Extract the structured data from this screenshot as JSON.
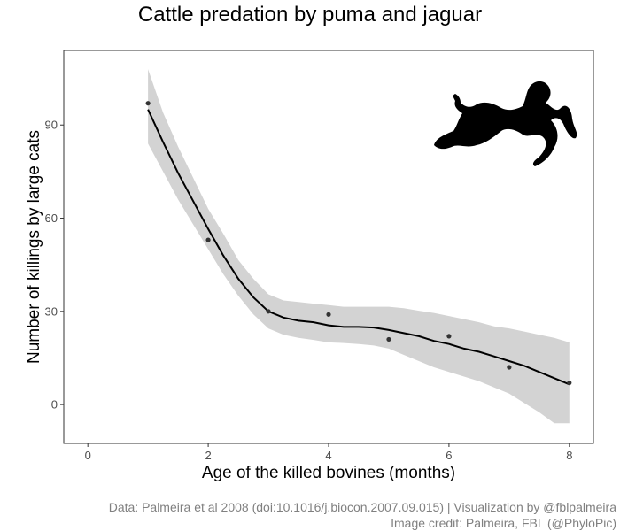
{
  "chart_data": {
    "type": "scatter",
    "title": "Cattle predation by puma and jaguar",
    "xlabel": "Age of the killed bovines (months)",
    "ylabel": "Number of killings by large cats",
    "xlim": [
      -0.4,
      8.4
    ],
    "ylim": [
      -12.5,
      114
    ],
    "x_ticks": [
      0,
      2,
      4,
      6,
      8
    ],
    "y_ticks": [
      0,
      30,
      60,
      90
    ],
    "grid": false,
    "legend": "none",
    "points": [
      {
        "x": 1,
        "y": 97
      },
      {
        "x": 2,
        "y": 53
      },
      {
        "x": 3,
        "y": 30
      },
      {
        "x": 4,
        "y": 29
      },
      {
        "x": 5,
        "y": 21
      },
      {
        "x": 6,
        "y": 22
      },
      {
        "x": 7,
        "y": 12
      },
      {
        "x": 8,
        "y": 7
      }
    ],
    "smooth": {
      "x": [
        1.0,
        1.25,
        1.5,
        1.75,
        2.0,
        2.25,
        2.5,
        2.75,
        3.0,
        3.25,
        3.5,
        3.75,
        4.0,
        4.25,
        4.5,
        4.75,
        5.0,
        5.25,
        5.5,
        5.75,
        6.0,
        6.25,
        6.5,
        6.75,
        7.0,
        7.25,
        7.5,
        7.75,
        8.0
      ],
      "y": [
        95,
        84.5,
        74.5,
        65.5,
        56.5,
        48,
        40.5,
        34.5,
        30,
        28,
        27,
        26.5,
        25.5,
        25,
        25,
        24.8,
        24,
        23,
        22,
        20.5,
        19.5,
        18,
        17,
        15.5,
        14,
        12.5,
        10.5,
        8.5,
        6.5
      ],
      "lower": [
        84,
        75,
        66,
        58,
        50,
        42,
        35,
        29,
        24.5,
        22.5,
        21.5,
        20.8,
        20,
        19.8,
        19.5,
        19,
        18,
        16,
        14,
        12,
        10.5,
        9,
        7.5,
        5.5,
        3.5,
        0.5,
        -2.5,
        -6,
        -6
      ],
      "upper": [
        108,
        94,
        83,
        73,
        63,
        55,
        46.5,
        40.5,
        35.5,
        33.5,
        33,
        32.5,
        32,
        31.5,
        31.5,
        31.5,
        31.5,
        31,
        30.2,
        29.5,
        28.5,
        27.5,
        26.5,
        25.2,
        24.5,
        23.5,
        22.5,
        21.5,
        20
      ]
    },
    "colors": {
      "points": "#333333",
      "line": "#000000",
      "band": "#d3d3d3",
      "axis_text": "#4d4d4d",
      "caption": "#808080",
      "silhouette": "#000000"
    },
    "silhouette_icon": "big-cat-attacking-bovine-silhouette",
    "caption_line1": "Data: Palmeira et al 2008 (doi:10.1016/j.biocon.2007.09.015) | Visualization by @fblpalmeira",
    "caption_line2": "Image credit: Palmeira, FBL (@PhyloPic)"
  }
}
